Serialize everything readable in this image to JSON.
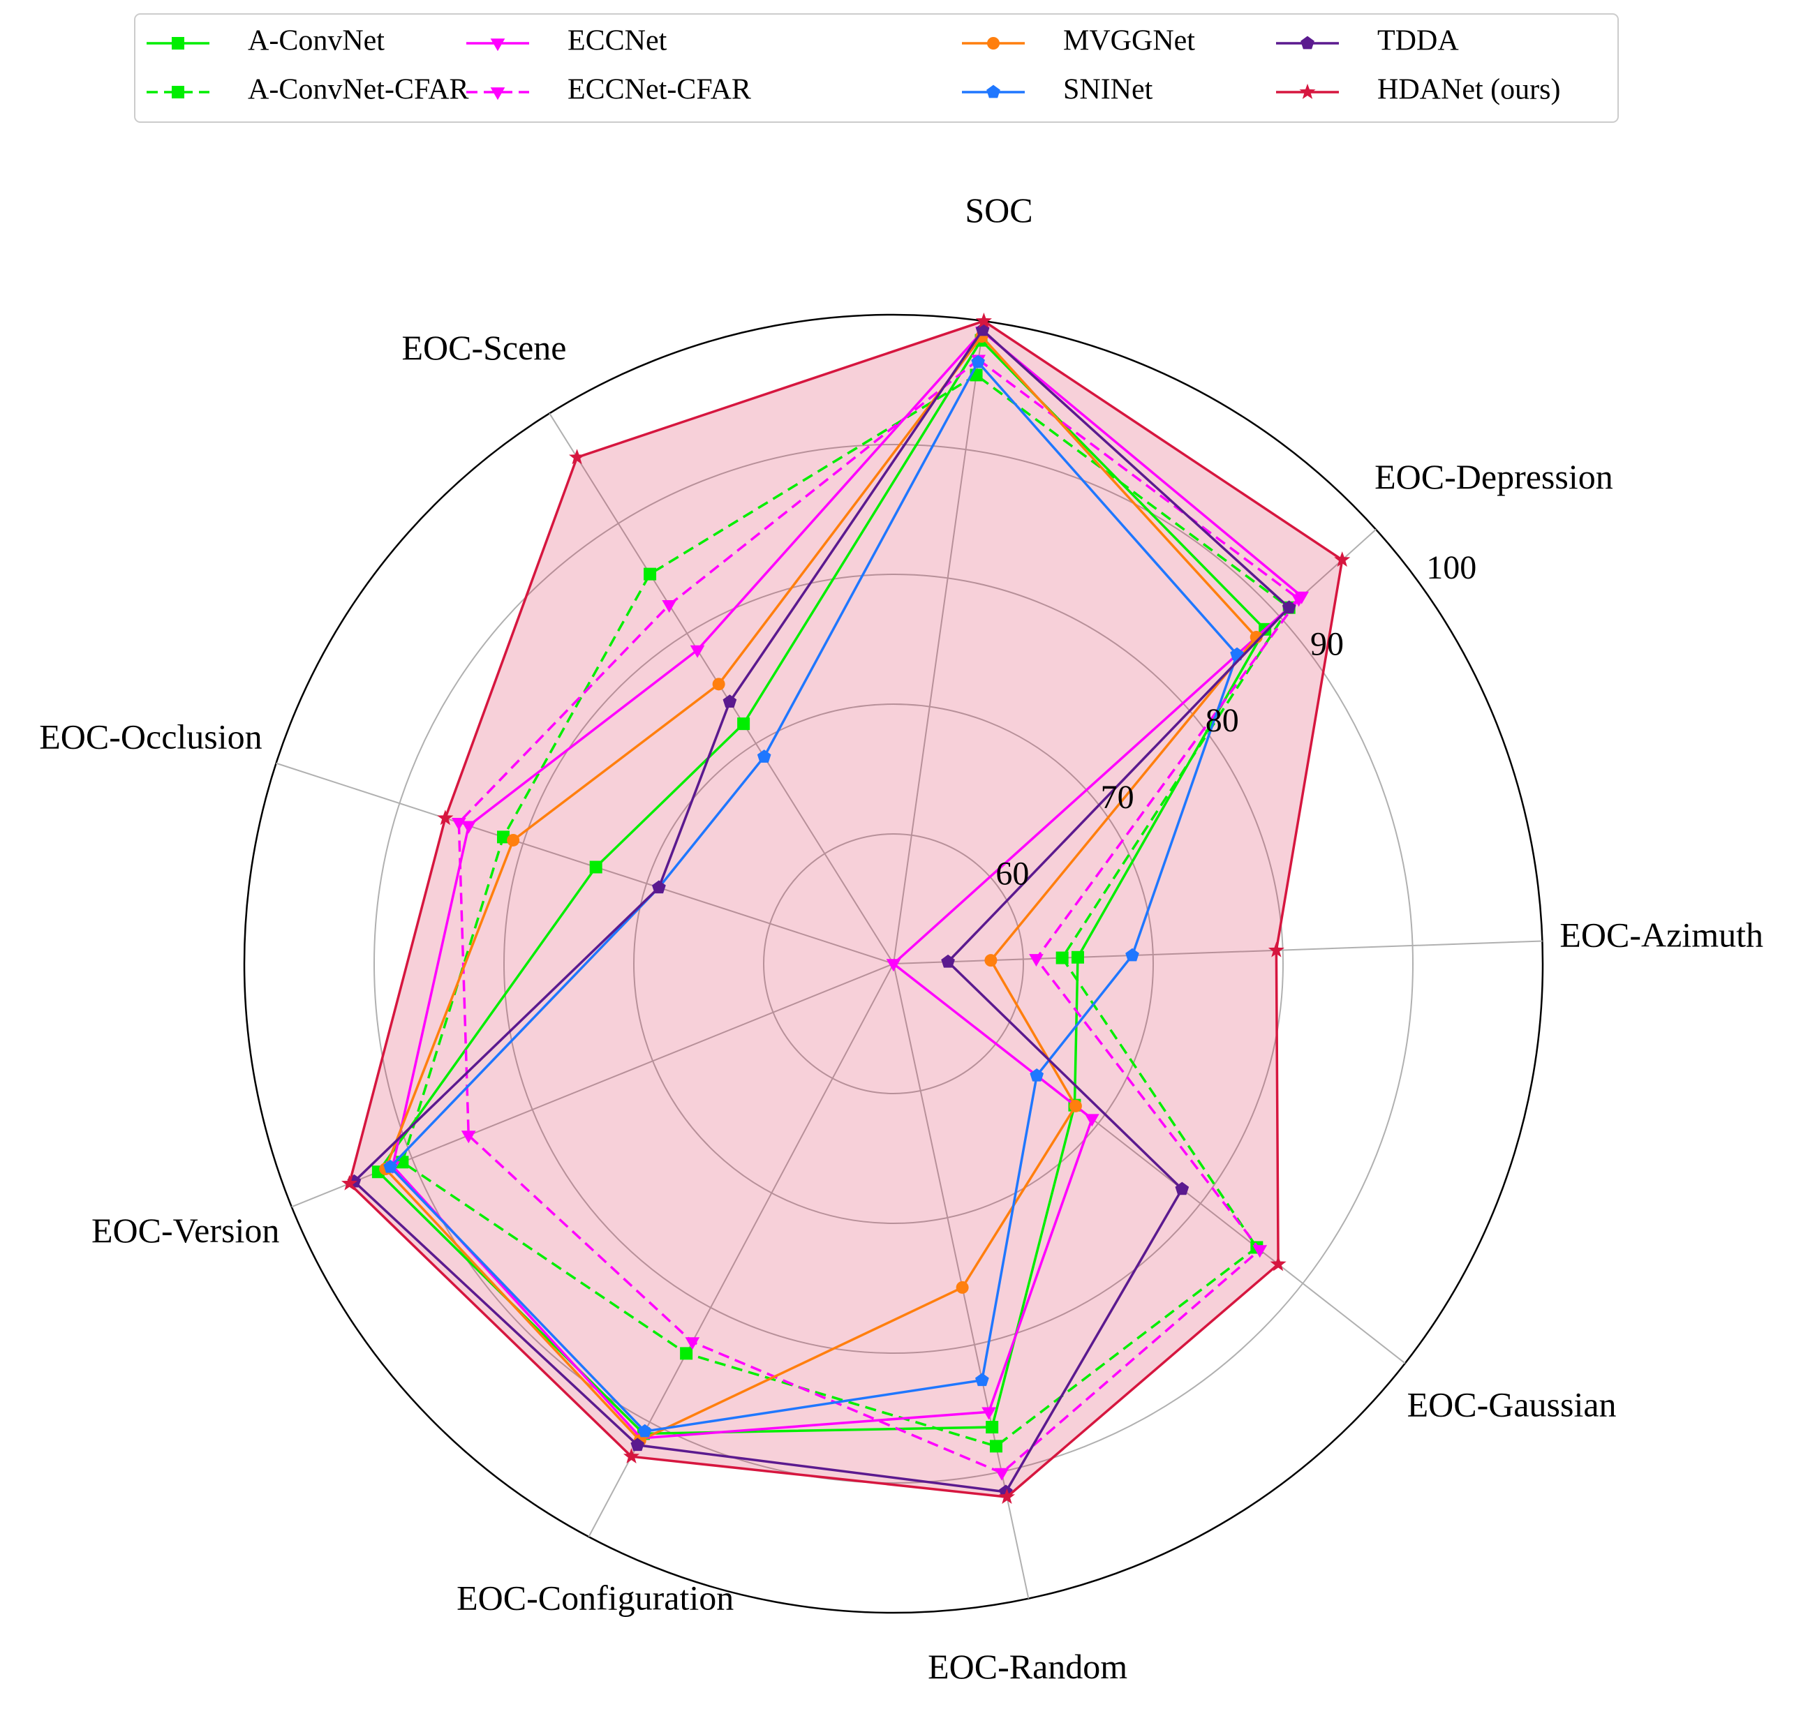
{
  "chart_data": {
    "type": "radar",
    "axes": [
      "SOC",
      "EOC-Scene",
      "EOC-Occlusion",
      "EOC-Version",
      "EOC-Configuration",
      "EOC-Random",
      "EOC-Gaussian",
      "EOC-Azimuth",
      "EOC-Depression"
    ],
    "r_range": [
      50,
      100
    ],
    "r_ticks": [
      60,
      70,
      80,
      90,
      100
    ],
    "grid": true,
    "legend_position": "top",
    "series": [
      {
        "name": "A-ConvNet",
        "color": "#00ee00",
        "dash": false,
        "marker": "square",
        "values": [
          98.5,
          71.8,
          74.1,
          92.8,
          91.0,
          86.5,
          67.7,
          64.2,
          88.5
        ]
      },
      {
        "name": "A-ConvNet-CFAR",
        "color": "#00ee00",
        "dash": true,
        "marker": "square",
        "values": [
          95.8,
          85.4,
          81.6,
          90.8,
          84.0,
          88.0,
          85.5,
          63.0,
          91.0
        ]
      },
      {
        "name": "ECCNet",
        "color": "#ff00ff",
        "dash": false,
        "marker": "triangle-down",
        "values": [
          99.2,
          78.5,
          84.4,
          91.6,
          91.4,
          85.3,
          69.4,
          50.0,
          92.3
        ]
      },
      {
        "name": "ECCNet-CFAR",
        "color": "#ff00ff",
        "dash": true,
        "marker": "triangle-down",
        "values": [
          97.0,
          82.6,
          85.2,
          85.3,
          83.0,
          90.1,
          85.8,
          61.0,
          92.0
        ]
      },
      {
        "name": "MVGGNet",
        "color": "#ff7f0e",
        "dash": false,
        "marker": "circle",
        "values": [
          98.8,
          75.4,
          80.8,
          92.2,
          91.6,
          75.5,
          67.8,
          57.5,
          87.6
        ]
      },
      {
        "name": "SNINet",
        "color": "#1f77ff",
        "dash": false,
        "marker": "pentagon",
        "values": [
          96.8,
          68.8,
          69.0,
          91.8,
          90.8,
          82.8,
          64.0,
          68.4,
          85.6
        ]
      },
      {
        "name": "TDDA",
        "color": "#5b1a8f",
        "dash": false,
        "marker": "pentagon",
        "values": [
          99.3,
          73.8,
          69.0,
          94.8,
          92.0,
          91.6,
          78.2,
          54.2,
          91.0
        ]
      },
      {
        "name": "HDANet (ours)",
        "color": "#d6163f",
        "dash": false,
        "marker": "star",
        "values": [
          100.0,
          96.0,
          86.3,
          95.2,
          93.0,
          92.0,
          87.6,
          79.5,
          96.5
        ]
      }
    ]
  }
}
